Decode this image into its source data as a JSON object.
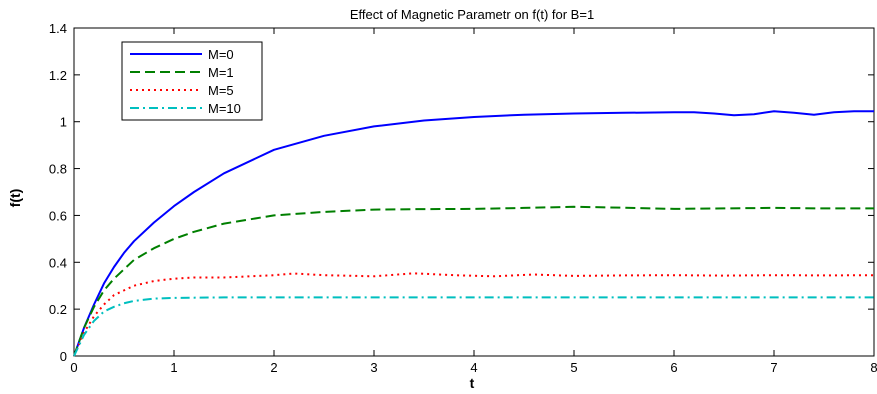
{
  "chart_data": {
    "type": "line",
    "title": "Effect of Magnetic Parametr on f(t) for B=1",
    "xlabel": "t",
    "ylabel": "f(t)",
    "xlim": [
      0,
      8
    ],
    "ylim": [
      0,
      1.4
    ],
    "xticks": [
      0,
      1,
      2,
      3,
      4,
      5,
      6,
      7,
      8
    ],
    "yticks": [
      0,
      0.2,
      0.4,
      0.6,
      0.8,
      1,
      1.2,
      1.4
    ],
    "xtick_labels": [
      "0",
      "1",
      "2",
      "3",
      "4",
      "5",
      "6",
      "7",
      "8"
    ],
    "ytick_labels": [
      "0",
      "0.2",
      "0.4",
      "0.6",
      "0.8",
      "1",
      "1.2",
      "1.4"
    ],
    "grid": false,
    "legend_position": "top-left",
    "series": [
      {
        "name": "M=0",
        "color": "#0000ff",
        "dash": "solid",
        "x": [
          0,
          0.1,
          0.2,
          0.3,
          0.4,
          0.5,
          0.6,
          0.8,
          1.0,
          1.2,
          1.5,
          2.0,
          2.5,
          3.0,
          3.5,
          4.0,
          4.5,
          5.0,
          5.5,
          6.0,
          6.2,
          6.4,
          6.6,
          6.8,
          7.0,
          7.2,
          7.4,
          7.6,
          7.8,
          8.0
        ],
        "values": [
          0,
          0.12,
          0.22,
          0.31,
          0.38,
          0.44,
          0.49,
          0.57,
          0.64,
          0.7,
          0.78,
          0.88,
          0.94,
          0.98,
          1.005,
          1.02,
          1.03,
          1.035,
          1.038,
          1.04,
          1.04,
          1.035,
          1.028,
          1.032,
          1.045,
          1.038,
          1.03,
          1.04,
          1.045,
          1.045
        ]
      },
      {
        "name": "M=1",
        "color": "#007f00",
        "dash": "dashed",
        "x": [
          0,
          0.1,
          0.2,
          0.3,
          0.4,
          0.5,
          0.6,
          0.8,
          1.0,
          1.2,
          1.5,
          2.0,
          2.5,
          3.0,
          3.5,
          4.0,
          4.5,
          5.0,
          5.5,
          6.0,
          6.5,
          7.0,
          7.5,
          8.0
        ],
        "values": [
          0,
          0.12,
          0.21,
          0.28,
          0.33,
          0.37,
          0.41,
          0.46,
          0.5,
          0.53,
          0.565,
          0.6,
          0.615,
          0.625,
          0.627,
          0.628,
          0.632,
          0.637,
          0.633,
          0.628,
          0.63,
          0.632,
          0.63,
          0.63
        ]
      },
      {
        "name": "M=5",
        "color": "#ff0000",
        "dash": "dotted",
        "x": [
          0,
          0.1,
          0.2,
          0.3,
          0.4,
          0.5,
          0.6,
          0.8,
          1.0,
          1.2,
          1.5,
          2.0,
          2.2,
          2.5,
          3.0,
          3.4,
          3.8,
          4.2,
          4.6,
          5.0,
          5.5,
          6.0,
          6.5,
          7.0,
          7.5,
          8.0
        ],
        "values": [
          0,
          0.1,
          0.17,
          0.22,
          0.26,
          0.28,
          0.3,
          0.32,
          0.33,
          0.335,
          0.335,
          0.345,
          0.352,
          0.345,
          0.34,
          0.353,
          0.345,
          0.34,
          0.348,
          0.342,
          0.344,
          0.345,
          0.343,
          0.345,
          0.344,
          0.345
        ]
      },
      {
        "name": "M=10",
        "color": "#00bfbf",
        "dash": "dash-dot",
        "x": [
          0,
          0.1,
          0.2,
          0.3,
          0.4,
          0.5,
          0.6,
          0.8,
          1.0,
          1.5,
          2.0,
          3.0,
          4.0,
          5.0,
          6.0,
          7.0,
          8.0
        ],
        "values": [
          0,
          0.09,
          0.15,
          0.19,
          0.21,
          0.225,
          0.235,
          0.245,
          0.248,
          0.25,
          0.25,
          0.25,
          0.25,
          0.25,
          0.25,
          0.25,
          0.25
        ]
      }
    ]
  }
}
